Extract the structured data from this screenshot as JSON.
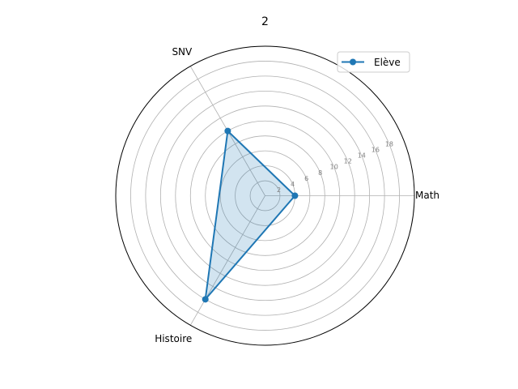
{
  "chart_data": {
    "type": "radar",
    "title": "2",
    "categories": [
      "Math",
      "SNV",
      "Histoire"
    ],
    "series": [
      {
        "name": "Elève",
        "values": [
          4,
          10,
          16
        ],
        "color": "#1f77b4"
      }
    ],
    "rlim": [
      0,
      20
    ],
    "rticks": [
      2,
      4,
      6,
      8,
      10,
      12,
      14,
      16,
      18
    ],
    "grid": true,
    "legend": "top-right"
  }
}
